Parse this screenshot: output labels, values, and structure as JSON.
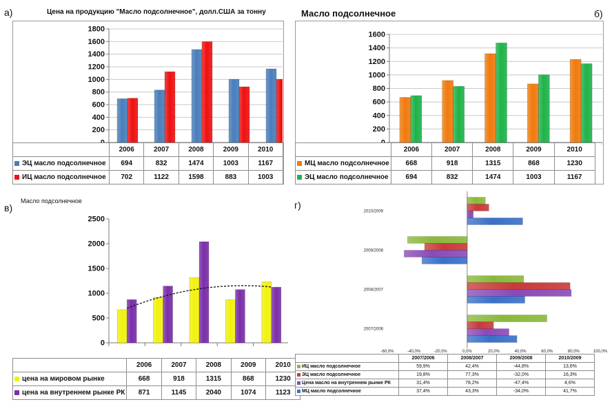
{
  "labels": {
    "a": "а)",
    "b": "б)",
    "v": "в)",
    "g": "г)"
  },
  "colors": {
    "blue": "#4a7ebb",
    "red": "#ee1111",
    "orange": "#f07b0d",
    "green": "#1fb34a",
    "yellow": "#f2f20f",
    "purple": "#7a2fa8",
    "gBlue": "#3a70c8",
    "gPurple": "#8a4ab8",
    "gRed": "#c83a3a",
    "gGreen": "#8ab83a"
  },
  "chart_data": [
    {
      "id": "a",
      "type": "bar",
      "title": "Цена на продукцию  \"Масло  подсолнечное\", долл.США за тонну",
      "categories": [
        "2006",
        "2007",
        "2008",
        "2009",
        "2010"
      ],
      "ylim": [
        0,
        1800
      ],
      "yticks": [
        "0",
        "200",
        "400",
        "600",
        "800",
        "1000",
        "1200",
        "1400",
        "1600",
        "1800"
      ],
      "series": [
        {
          "name": "ЭЦ масло  подсолнечное",
          "color": "blue",
          "values": [
            694,
            832,
            1474,
            1003,
            1167
          ],
          "labels": [
            "694",
            "832",
            "1474",
            "1003",
            "1167"
          ]
        },
        {
          "name": "ИЦ масло подсолнечное",
          "color": "red",
          "values": [
            702,
            1122,
            1598,
            883,
            1003
          ],
          "labels": [
            "702",
            "1122",
            "1598",
            "883",
            "1003"
          ]
        }
      ]
    },
    {
      "id": "b",
      "type": "bar",
      "title": "Масло подсолнечное",
      "categories": [
        "2006",
        "2007",
        "2008",
        "2009",
        "2010"
      ],
      "ylim": [
        0,
        1600
      ],
      "yticks": [
        "0",
        "200",
        "400",
        "600",
        "800",
        "1000",
        "1200",
        "1400",
        "1600"
      ],
      "series": [
        {
          "name": "МЦ масло  подсолнечное",
          "color": "orange",
          "values": [
            668,
            918,
            1315,
            868,
            1230
          ],
          "labels": [
            "668",
            "918",
            "1315",
            "868",
            "1230"
          ]
        },
        {
          "name": "ЭЦ масло  подсолнечное",
          "color": "green",
          "values": [
            694,
            832,
            1474,
            1003,
            1167
          ],
          "labels": [
            "694",
            "832",
            "1474",
            "1003",
            "1167"
          ]
        }
      ]
    },
    {
      "id": "v",
      "type": "bar",
      "title": "Масло подсолнечное",
      "categories": [
        "2006",
        "2007",
        "2008",
        "2009",
        "2010"
      ],
      "ylim": [
        0,
        2500
      ],
      "yticks": [
        "0",
        "500",
        "1000",
        "1500",
        "2000",
        "2500"
      ],
      "trendline": "dashed polynomial",
      "series": [
        {
          "name": "цена на мировом рынке",
          "color": "yellow",
          "values": [
            668,
            918,
            1315,
            868,
            1230
          ],
          "labels": [
            "668",
            "918",
            "1315",
            "868",
            "1230"
          ]
        },
        {
          "name": "цена на внутреннем рынке РК",
          "color": "purple",
          "values": [
            871,
            1145,
            2040,
            1074,
            1123
          ],
          "labels": [
            "871",
            "1145",
            "2040",
            "1074",
            "1123"
          ]
        }
      ]
    },
    {
      "id": "g",
      "type": "bar",
      "orientation": "horizontal",
      "categories": [
        "2007/2006",
        "2008/2007",
        "2009/2008",
        "2010/2009"
      ],
      "xlim": [
        -60,
        100
      ],
      "xticks": [
        "-60,0%",
        "-40,0%",
        "-20,0%",
        "0,0%",
        "20,0%",
        "40,0%",
        "60,0%",
        "80,0%",
        "100,0%"
      ],
      "series": [
        {
          "name": "ИЦ масло подсолнечное",
          "color": "gGreen",
          "values": [
            59.9,
            42.4,
            -44.8,
            13.6
          ],
          "labels": [
            "59,9%",
            "42,4%",
            "-44,8%",
            "13,6%"
          ]
        },
        {
          "name": "ЭЦ масло подсолнечное",
          "color": "gRed",
          "values": [
            19.8,
            77.3,
            -32.0,
            16.3
          ],
          "labels": [
            "19,8%",
            "77,3%",
            "-32,0%",
            "16,3%"
          ]
        },
        {
          "name": "Цена масло на внутреннем рынке РК",
          "color": "gPurple",
          "values": [
            31.4,
            78.2,
            -47.4,
            4.6
          ],
          "labels": [
            "31,4%",
            "78,2%",
            "-47,4%",
            "4,6%"
          ]
        },
        {
          "name": "МЦ масло подсолнечное",
          "color": "gBlue",
          "values": [
            37.4,
            43.3,
            -34.0,
            41.7
          ],
          "labels": [
            "37,4%",
            "43,3%",
            "-34,0%",
            "41,7%"
          ]
        }
      ]
    }
  ]
}
